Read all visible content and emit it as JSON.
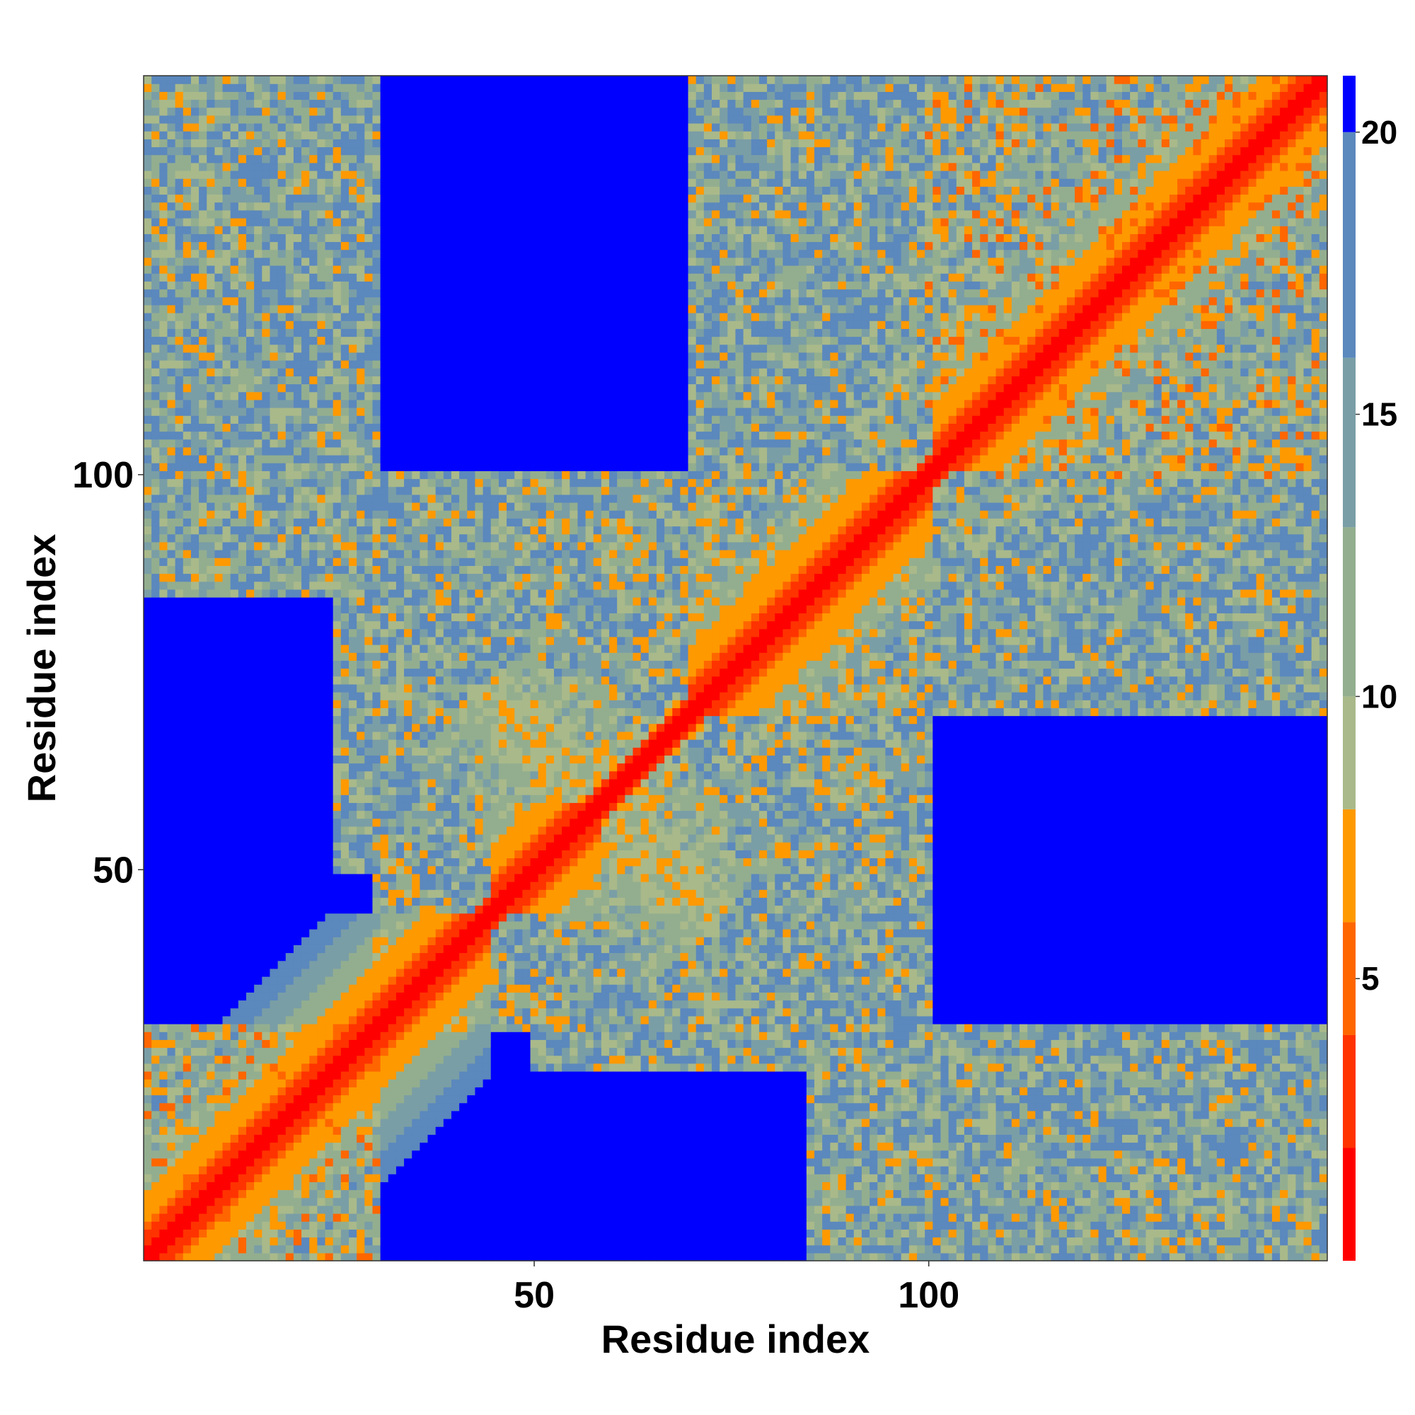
{
  "chart_data": {
    "type": "heatmap",
    "title": "",
    "xlabel": "Residue index",
    "ylabel": "Residue index",
    "n_residues": 150,
    "xlim": [
      1,
      150
    ],
    "ylim": [
      1,
      150
    ],
    "x_ticks": [
      50,
      100
    ],
    "y_ticks": [
      50,
      100
    ],
    "x_tick_labels": [
      "50",
      "100"
    ],
    "y_tick_labels": [
      "50",
      "100"
    ],
    "colorbar": {
      "range": [
        0,
        21
      ],
      "ticks": [
        5,
        10,
        15,
        20
      ],
      "tick_labels": [
        "5",
        "10",
        "15",
        "20"
      ],
      "levels": [
        {
          "max": 2,
          "color": "#ff0000"
        },
        {
          "max": 4,
          "color": "#ff3300"
        },
        {
          "max": 6,
          "color": "#ff6600"
        },
        {
          "max": 8,
          "color": "#ff9900"
        },
        {
          "max": 10,
          "color": "#a9b98a"
        },
        {
          "max": 13,
          "color": "#93ae8f"
        },
        {
          "max": 16,
          "color": "#7a9ea6"
        },
        {
          "max": 20,
          "color": "#5b88bd"
        },
        {
          "max": 21,
          "color": "#0000ff"
        }
      ]
    },
    "structure": {
      "description": "symmetric residue-residue distance map",
      "diagonal_distance": 0,
      "helices": [
        [
          1,
          44
        ],
        [
          45,
          58
        ],
        [
          70,
          100
        ],
        [
          101,
          150
        ]
      ],
      "contact_regions": [
        {
          "i": [
            1,
            30
          ],
          "j": [
            1,
            30
          ],
          "min_distance": 5
        },
        {
          "i": [
            30,
            55
          ],
          "j": [
            30,
            55
          ],
          "min_distance": 6
        },
        {
          "i": [
            50,
            68
          ],
          "j": [
            50,
            68
          ],
          "min_distance": 6
        },
        {
          "i": [
            60,
            100
          ],
          "j": [
            60,
            100
          ],
          "min_distance": 6
        },
        {
          "i": [
            1,
            30
          ],
          "j": [
            85,
            150
          ],
          "min_distance": 7
        },
        {
          "i": [
            25,
            70
          ],
          "j": [
            50,
            100
          ],
          "min_distance": 7
        },
        {
          "i": [
            70,
            110
          ],
          "j": [
            100,
            150
          ],
          "min_distance": 7
        },
        {
          "i": [
            100,
            150
          ],
          "j": [
            100,
            150
          ],
          "min_distance": 5
        }
      ]
    }
  }
}
